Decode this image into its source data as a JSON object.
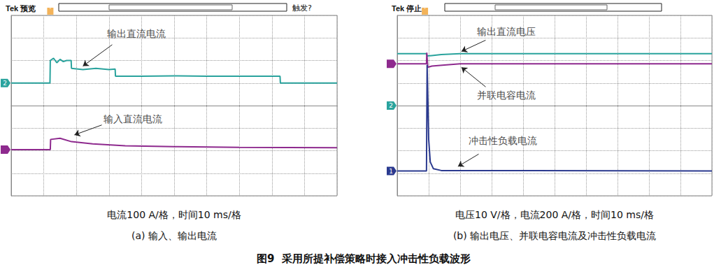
{
  "figure_title": "图9  采用所提补偿策略时接入冲击性负载波形",
  "chart_data": [
    {
      "type": "line",
      "status": "Tek 预览",
      "trigger_status": "触发?",
      "scale_note": "电流100 A/格，时间10 ms/格",
      "caption": "(a) 输入、输出电流",
      "xlim": [
        0,
        100
      ],
      "xticks": [
        0,
        10,
        20,
        30,
        40,
        50,
        60,
        70,
        80,
        90,
        100
      ],
      "ylim": [
        -4,
        4
      ],
      "yticks": [
        -4,
        -3,
        -2,
        -1,
        0,
        1,
        2,
        3,
        4
      ],
      "grid": true,
      "tick_labels": false,
      "trigger": {
        "label": "T",
        "x": 12
      },
      "series": [
        {
          "name": "输出直流电流",
          "color": "#2aa39d",
          "marker": "tag",
          "channel": "2",
          "x": [
            0,
            5,
            11.9,
            12,
            13,
            14,
            15,
            16,
            17,
            18.4,
            18.5,
            22,
            26,
            30,
            31.9,
            32,
            40,
            50,
            60,
            70,
            80,
            82.5,
            82.6,
            90,
            100
          ],
          "values": [
            1.0,
            1.0,
            1.0,
            2.0,
            2.1,
            1.9,
            2.05,
            1.95,
            2.0,
            2.0,
            1.65,
            1.6,
            1.65,
            1.6,
            1.62,
            1.3,
            1.3,
            1.32,
            1.3,
            1.3,
            1.3,
            1.3,
            1.0,
            1.0,
            1.0
          ]
        },
        {
          "name": "输入直流电流",
          "color": "#8e2a8e",
          "marker": "tag",
          "x": [
            0,
            12,
            12.1,
            15,
            18.5,
            25,
            35,
            50,
            70,
            100
          ],
          "values": [
            -1.95,
            -1.95,
            -1.5,
            -1.45,
            -1.6,
            -1.7,
            -1.78,
            -1.82,
            -1.85,
            -1.87
          ]
        }
      ],
      "annotations": [
        {
          "text": "输出直流电流",
          "x": 38.4,
          "y": 3.2,
          "arrow_from": [
            31,
            2.7
          ],
          "arrow_to": [
            22,
            1.75
          ]
        },
        {
          "text": "输入直流电流",
          "x": 37.3,
          "y": -0.6,
          "arrow_from": [
            27.8,
            -0.86
          ],
          "arrow_to": [
            19.4,
            -1.3
          ]
        }
      ]
    },
    {
      "type": "line",
      "status": "Tek 停止",
      "scale_note": "电压10 V/格，电流200 A/格，时间10 ms/格",
      "caption": "(b) 输出电压、并联电容电流及冲击性负载电流",
      "xlim": [
        0,
        100
      ],
      "xticks": [
        0,
        10,
        20,
        30,
        40,
        50,
        60,
        70,
        80,
        90,
        100
      ],
      "ylim": [
        -4,
        4
      ],
      "yticks": [
        -4,
        -3,
        -2,
        -1,
        0,
        1,
        2,
        3,
        4
      ],
      "grid": true,
      "tick_labels": false,
      "trigger": {
        "label": "T",
        "x": 8.8
      },
      "markers": [
        {
          "label": "2",
          "y": 0,
          "color": "#2aa39d"
        }
      ],
      "series": [
        {
          "name": "输出直流电压",
          "color": "#2aa39d",
          "x": [
            0,
            9.3,
            9.5,
            11,
            14,
            20,
            100
          ],
          "values": [
            2.3,
            2.3,
            2.2,
            2.22,
            2.26,
            2.3,
            2.3
          ]
        },
        {
          "name": "并联电容电流",
          "color": "#8e2a8e",
          "marker": "tag",
          "x": [
            0,
            9.3,
            9.4,
            9.7,
            11,
            15,
            20,
            100
          ],
          "values": [
            1.85,
            1.85,
            2.35,
            1.7,
            1.75,
            1.8,
            1.85,
            1.85
          ]
        },
        {
          "name": "冲击性负载电流",
          "color": "#2b3a8f",
          "marker": "tag",
          "channel": "1",
          "x": [
            0,
            9.3,
            9.5,
            10,
            10.5,
            11.5,
            14,
            100
          ],
          "values": [
            -2.9,
            -2.9,
            1.8,
            -1.5,
            -2.5,
            -2.8,
            -2.88,
            -2.9
          ]
        }
      ],
      "annotations": [
        {
          "text": "输出直流电压",
          "x": 34.6,
          "y": 3.3,
          "arrow_from": [
            28.1,
            2.9
          ],
          "arrow_to": [
            20.4,
            2.4
          ]
        },
        {
          "text": "并联电容电流",
          "x": 34.6,
          "y": 0.45,
          "arrow_from": [
            28.1,
            0.83
          ],
          "arrow_to": [
            20.4,
            1.7
          ]
        },
        {
          "text": "冲击性负载电流",
          "x": 33.5,
          "y": -1.55,
          "arrow_from": [
            25.9,
            -2.15
          ],
          "arrow_to": [
            19.3,
            -2.7
          ]
        }
      ]
    }
  ]
}
